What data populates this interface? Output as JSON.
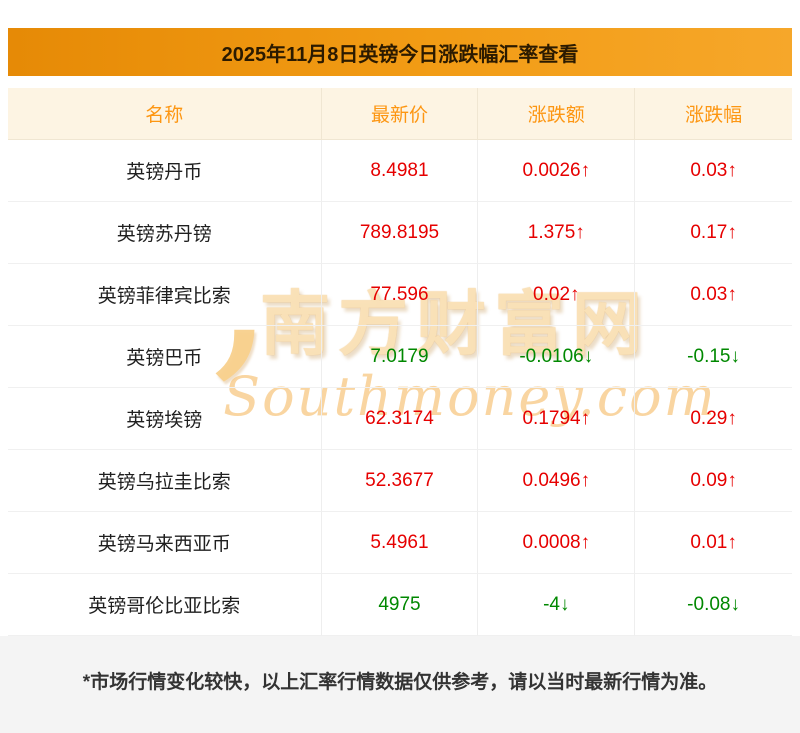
{
  "title": "2025年11月8日英镑今日涨跌幅汇率查看",
  "chart_data": {
    "type": "table",
    "title": "2025年11月8日英镑今日涨跌幅汇率查看",
    "columns": [
      "名称",
      "最新价",
      "涨跌额",
      "涨跌幅"
    ],
    "rows": [
      [
        "英镑丹币",
        "8.4981",
        "0.0026↑",
        "0.03↑"
      ],
      [
        "英镑苏丹镑",
        "789.8195",
        "1.375↑",
        "0.17↑"
      ],
      [
        "英镑菲律宾比索",
        "77.596",
        "0.02↑",
        "0.03↑"
      ],
      [
        "英镑巴币",
        "7.0179",
        "-0.0106↓",
        "-0.15↓"
      ],
      [
        "英镑埃镑",
        "62.3174",
        "0.1794↑",
        "0.29↑"
      ],
      [
        "英镑乌拉圭比索",
        "52.3677",
        "0.0496↑",
        "0.09↑"
      ],
      [
        "英镑马来西亚币",
        "5.4961",
        "0.0008↑",
        "0.01↑"
      ],
      [
        "英镑哥伦比亚比索",
        "4975",
        "-4↓",
        "-0.08↓"
      ]
    ],
    "trends": [
      "up",
      "up",
      "up",
      "down",
      "up",
      "up",
      "up",
      "down"
    ]
  },
  "watermark": {
    "cn": "南方财富网",
    "en": "Southmoney.com"
  },
  "footer": "*市场行情变化较快，以上汇率行情数据仅供参考，请以当时最新行情为准。",
  "colors": {
    "up": "#e60000",
    "down": "#008800",
    "accent_orange": "#fd9612",
    "title_bar_gradient_start": "#e68a06",
    "title_bar_gradient_end": "#f6a72a",
    "header_row_bg": "#fdf4e3",
    "footer_bg": "#f4f4f4"
  }
}
